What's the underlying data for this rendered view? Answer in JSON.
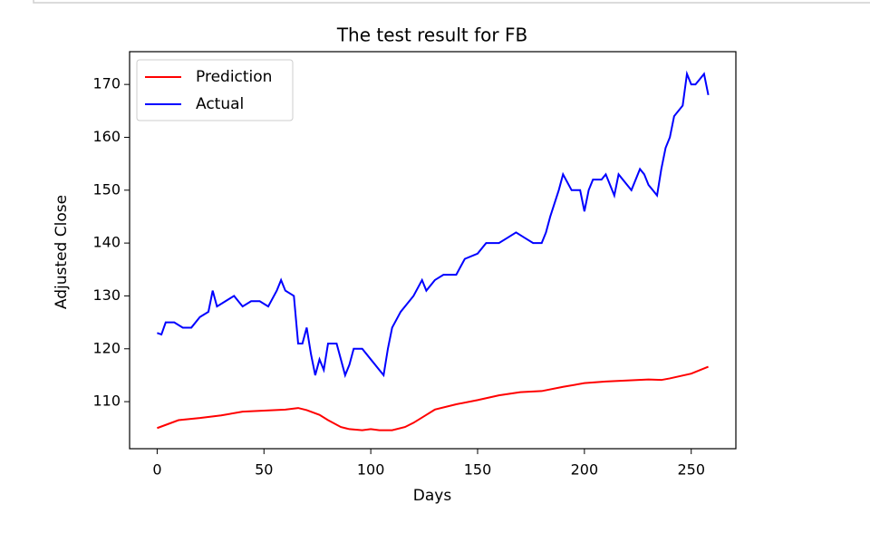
{
  "chart_data": {
    "type": "line",
    "title": "The test result for FB",
    "xlabel": "Days",
    "ylabel": "Adjusted Close",
    "xlim": [
      -12.9,
      270.9
    ],
    "ylim": [
      101.1,
      176.2
    ],
    "xticks": [
      0,
      50,
      100,
      150,
      200,
      250
    ],
    "yticks": [
      110,
      120,
      130,
      140,
      150,
      160,
      170
    ],
    "legend": "upper left",
    "series": [
      {
        "name": "Prediction",
        "color": "#ff0000",
        "x": [
          0,
          10,
          20,
          30,
          40,
          50,
          60,
          66,
          70,
          76,
          80,
          86,
          90,
          96,
          100,
          104,
          110,
          116,
          120,
          126,
          130,
          140,
          150,
          160,
          170,
          180,
          190,
          200,
          210,
          220,
          230,
          236,
          240,
          250,
          258
        ],
        "values": [
          105,
          106.5,
          106.9,
          107.4,
          108.1,
          108.3,
          108.5,
          108.8,
          108.4,
          107.5,
          106.5,
          105.2,
          104.8,
          104.6,
          104.8,
          104.6,
          104.6,
          105.2,
          106,
          107.5,
          108.5,
          109.5,
          110.3,
          111.2,
          111.8,
          112.0,
          112.8,
          113.5,
          113.8,
          114.0,
          114.2,
          114.1,
          114.4,
          115.3,
          116.6
        ]
      },
      {
        "name": "Actual",
        "color": "#0000ff",
        "x": [
          0,
          2,
          4,
          8,
          12,
          16,
          20,
          24,
          26,
          28,
          32,
          36,
          40,
          44,
          48,
          52,
          56,
          58,
          60,
          64,
          66,
          68,
          70,
          72,
          74,
          76,
          78,
          80,
          84,
          86,
          88,
          90,
          92,
          96,
          100,
          104,
          106,
          108,
          110,
          114,
          116,
          120,
          124,
          126,
          130,
          134,
          140,
          144,
          150,
          154,
          160,
          164,
          168,
          172,
          176,
          180,
          182,
          184,
          188,
          190,
          194,
          198,
          200,
          202,
          204,
          208,
          210,
          214,
          216,
          220,
          222,
          226,
          228,
          230,
          232,
          234,
          236,
          238,
          240,
          242,
          246,
          248,
          250,
          252,
          254,
          256,
          258
        ],
        "values": [
          123,
          122.7,
          125,
          125,
          124,
          124,
          126,
          127,
          131,
          128,
          129,
          130,
          128,
          129,
          129,
          128,
          131,
          133,
          131,
          130,
          121,
          121,
          124,
          119,
          115,
          118,
          116,
          121,
          121,
          118,
          115,
          117,
          120,
          120,
          118,
          116,
          115,
          120,
          124,
          127,
          128,
          130,
          133,
          131,
          133,
          134,
          134,
          137,
          138,
          140,
          140,
          141,
          142,
          141,
          140,
          140,
          142,
          145,
          150,
          153,
          150,
          150,
          146,
          150,
          152,
          152,
          153,
          149,
          153,
          151,
          150,
          154,
          153,
          151,
          150,
          149,
          154,
          158,
          160,
          164,
          166,
          172,
          170,
          170,
          171,
          172,
          168
        ]
      }
    ]
  }
}
